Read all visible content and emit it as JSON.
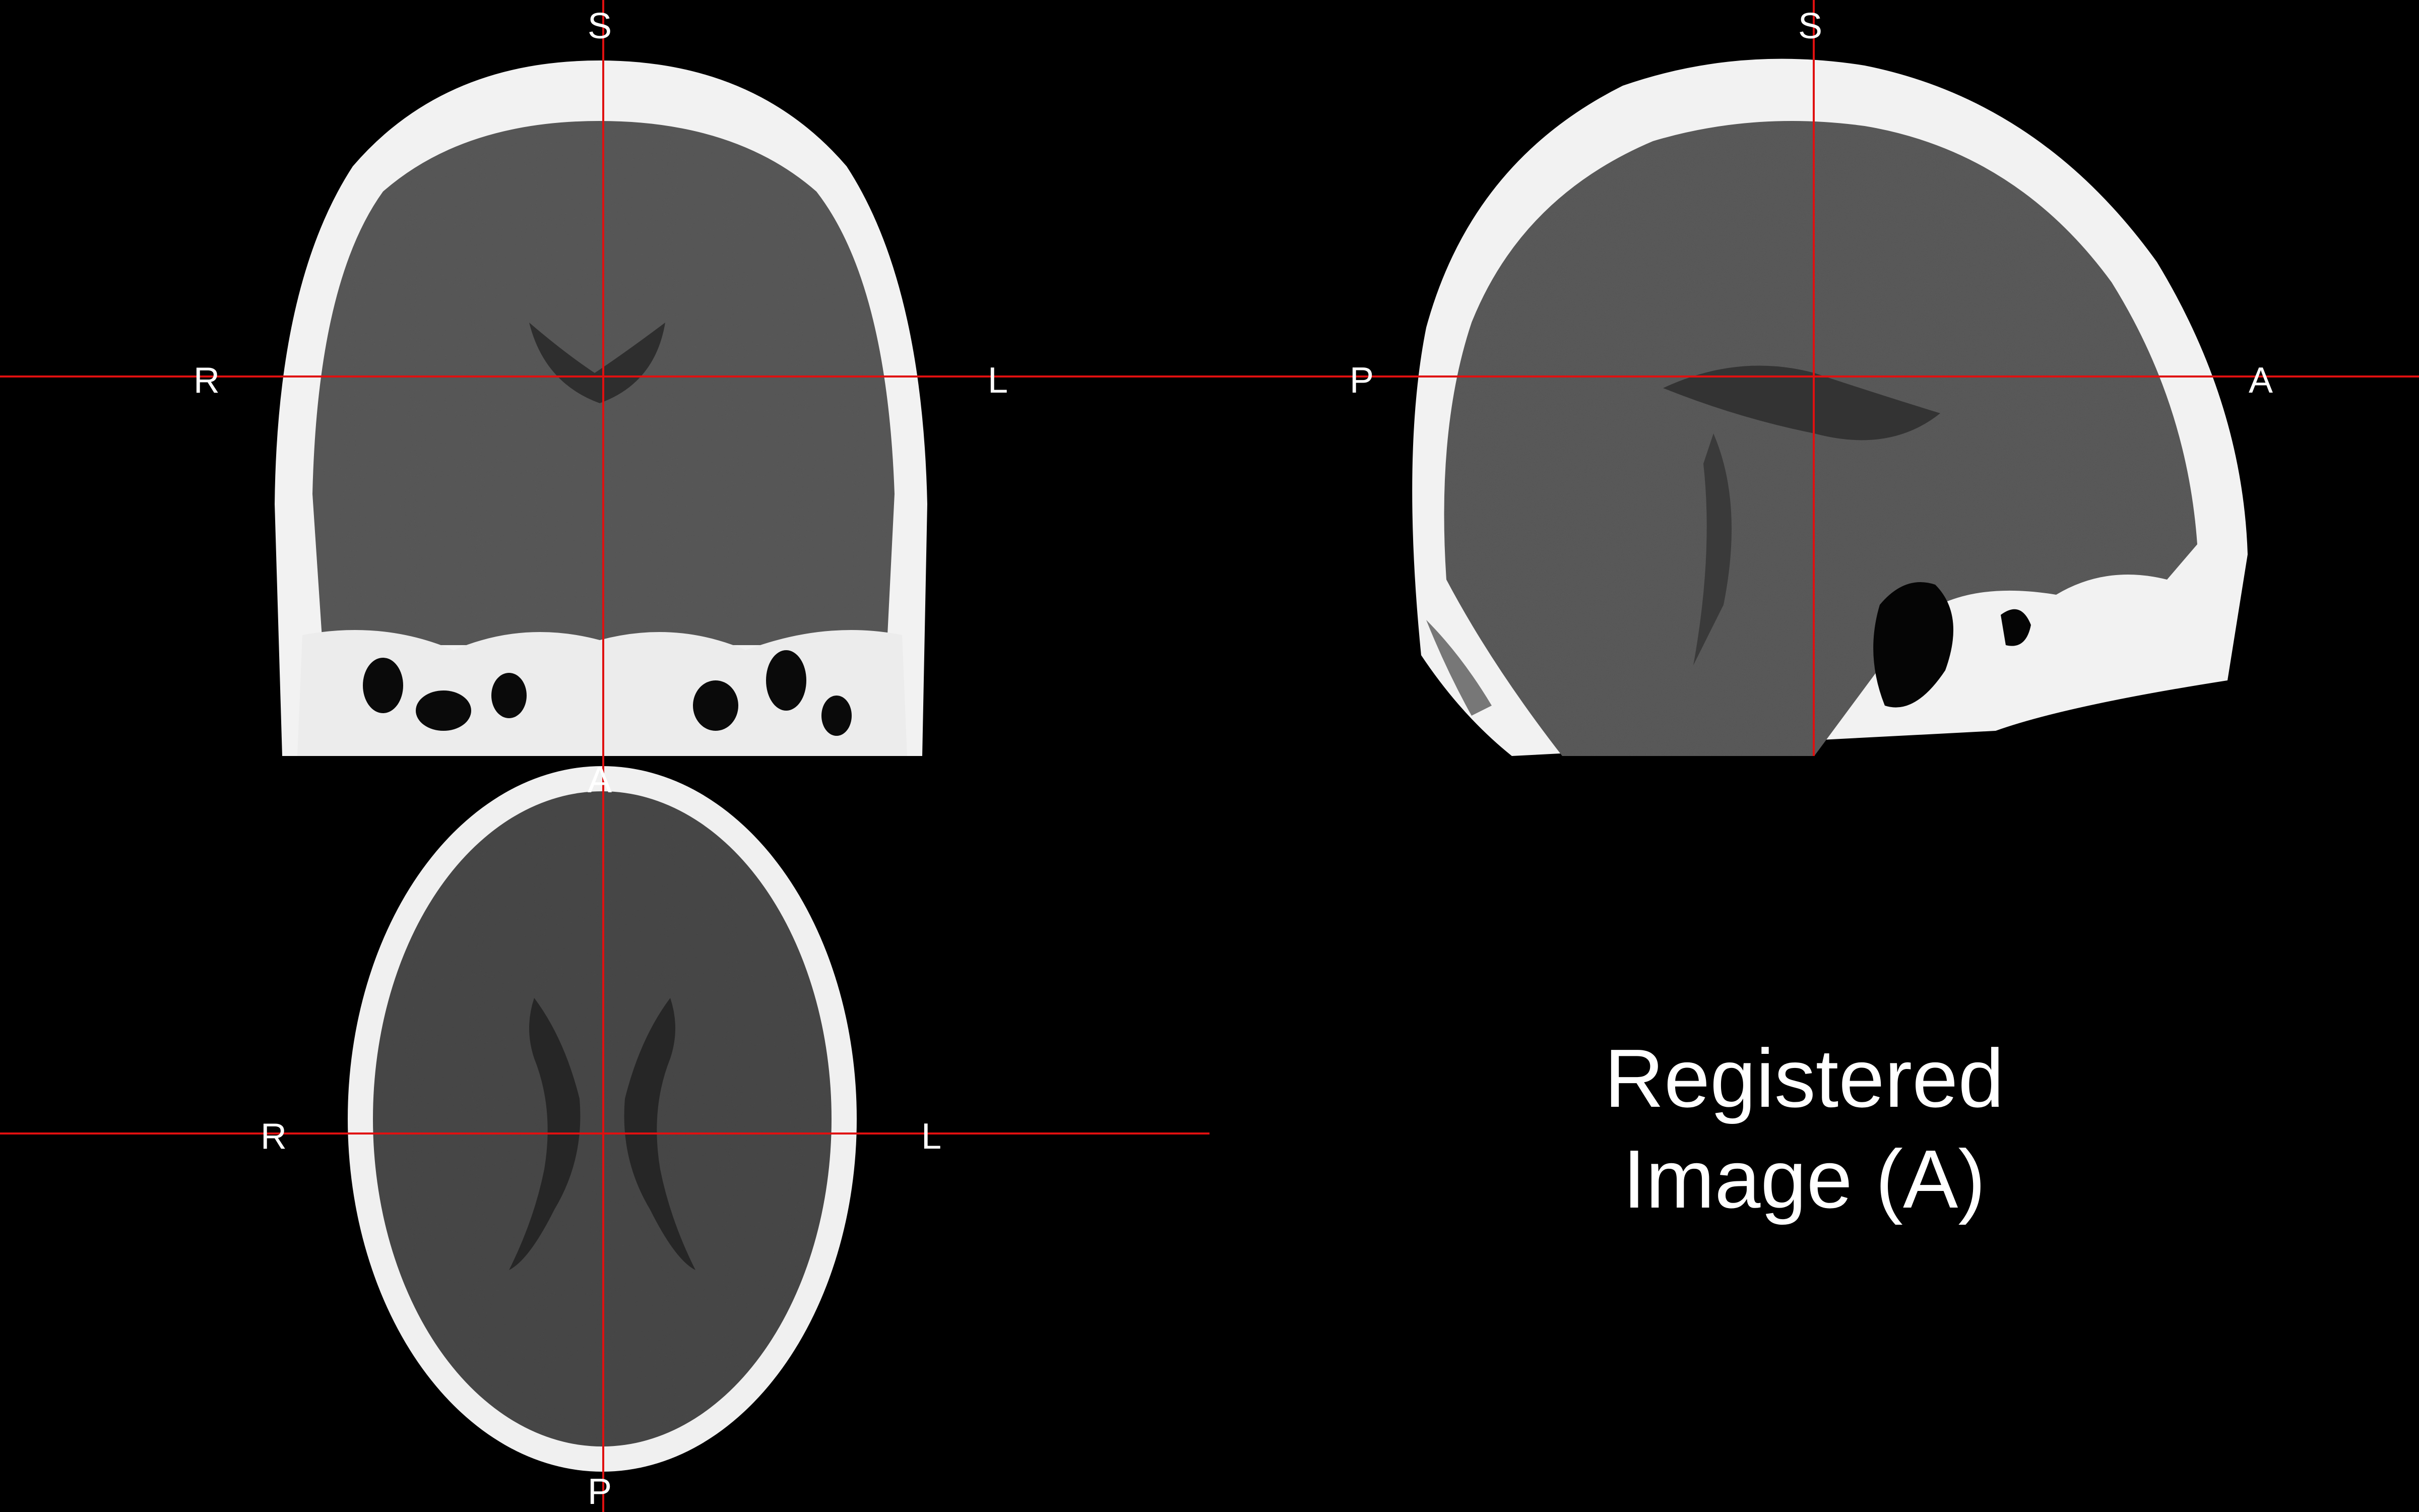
{
  "viewer": {
    "caption": {
      "line1": "Registered",
      "line2": "Image (A)"
    },
    "crosshair_color": "#e01010",
    "label_color": "#ffffff",
    "background": "#000000"
  },
  "coronal": {
    "top": "S",
    "left": "R",
    "right": "L"
  },
  "sagittal": {
    "top": "S",
    "left": "P",
    "right": "A"
  },
  "axial": {
    "top": "A",
    "bottom": "P",
    "left": "R",
    "right": "L"
  }
}
